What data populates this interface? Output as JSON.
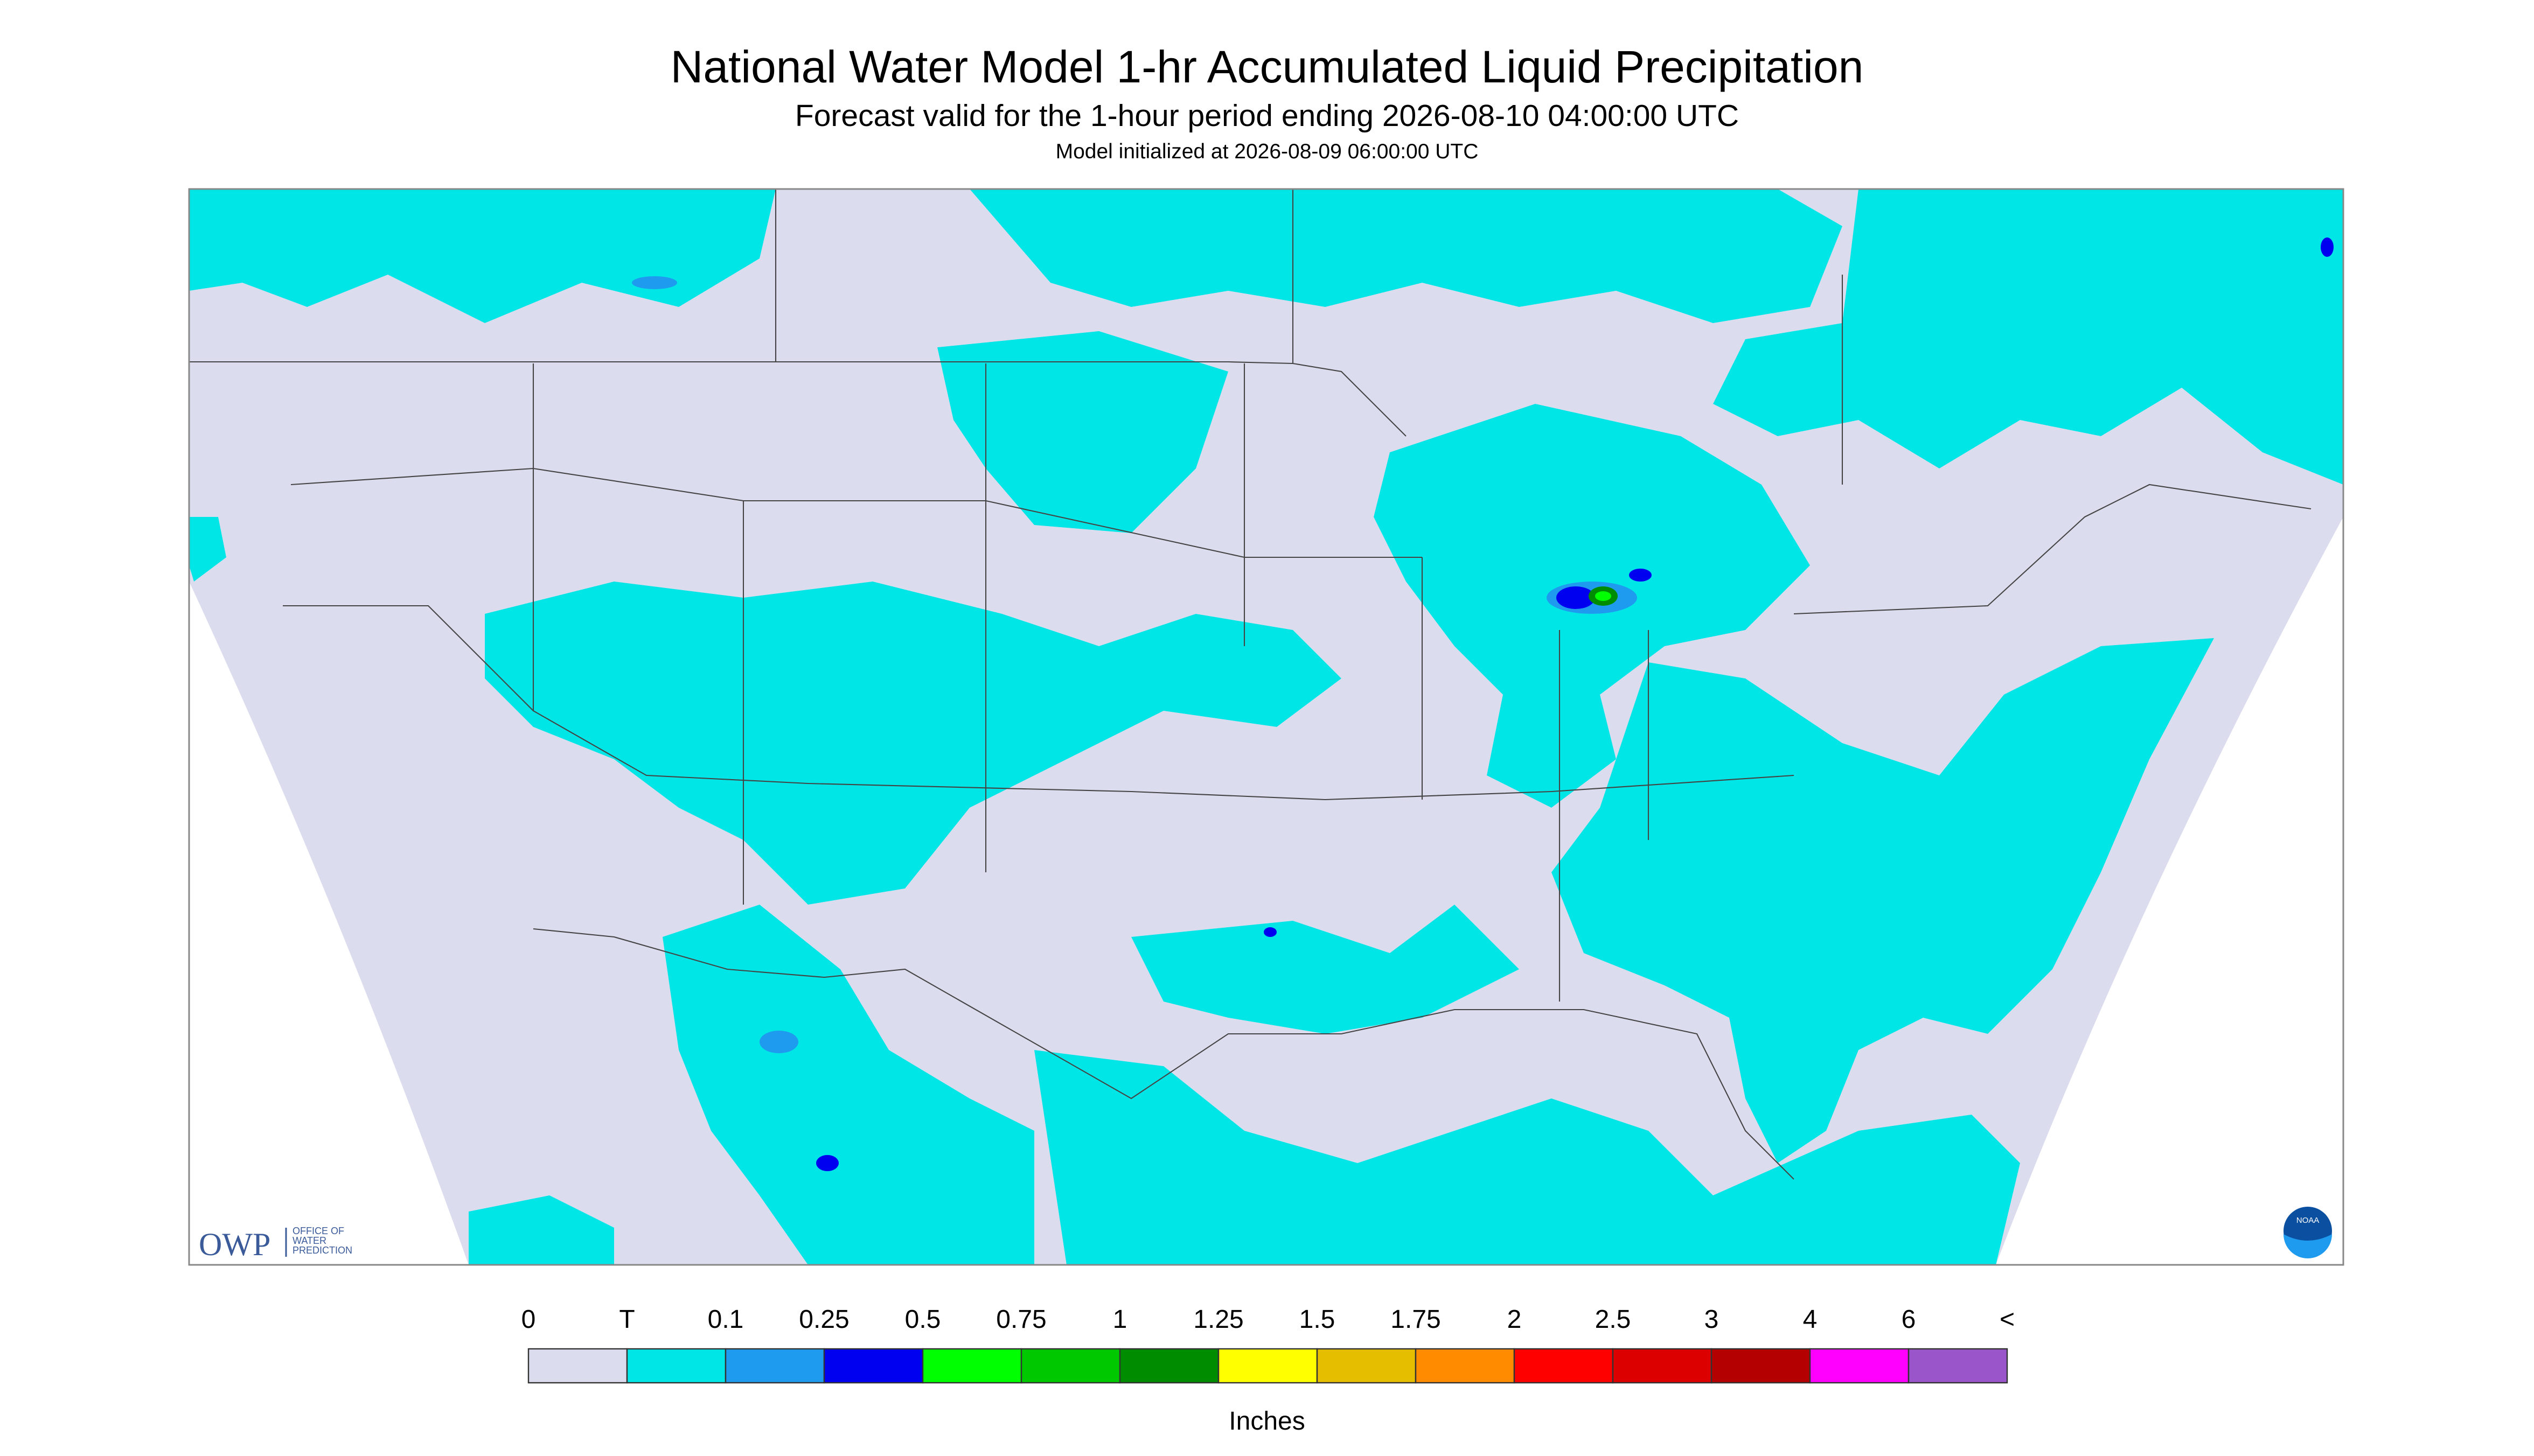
{
  "header": {
    "title": "National Water Model 1-hr Accumulated Liquid Precipitation",
    "subtitle": "Forecast valid for the 1-hour period ending 2026-08-10 04:00:00 UTC",
    "note": "Model initialized at 2026-08-09 06:00:00 UTC"
  },
  "logos": {
    "owp": "OWP",
    "owp_name": [
      "OFFICE OF",
      "WATER",
      "PREDICTION"
    ],
    "noaa": "NOAA"
  },
  "legend": {
    "labels": [
      "0",
      "T",
      "0.1",
      "0.25",
      "0.5",
      "0.75",
      "1",
      "1.25",
      "1.5",
      "1.75",
      "2",
      "2.5",
      "3",
      "4",
      "6",
      "<"
    ],
    "colors": [
      "#dcdcef",
      "#00e6e6",
      "#1e9bee",
      "#0000f0",
      "#00ff00",
      "#00c800",
      "#008c00",
      "#ffff00",
      "#e6be00",
      "#ff8c00",
      "#ff0000",
      "#dc0000",
      "#b40000",
      "#ff00ff",
      "#9955c9"
    ],
    "unit": "Inches"
  }
}
